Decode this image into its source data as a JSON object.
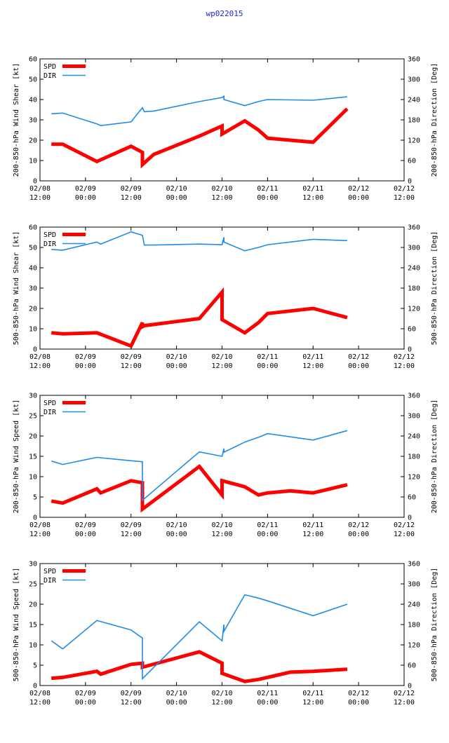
{
  "title": "wp022015",
  "colors": {
    "spd": "#ff0000",
    "dir": "#1e8be8",
    "axis": "#000000"
  },
  "x_ticks": [
    {
      "line1": "02/08",
      "line2": "12:00"
    },
    {
      "line1": "02/09",
      "line2": "00:00"
    },
    {
      "line1": "02/09",
      "line2": "12:00"
    },
    {
      "line1": "02/10",
      "line2": "00:00"
    },
    {
      "line1": "02/10",
      "line2": "12:00"
    },
    {
      "line1": "02/11",
      "line2": "00:00"
    },
    {
      "line1": "02/11",
      "line2": "12:00"
    },
    {
      "line1": "02/12",
      "line2": "00:00"
    },
    {
      "line1": "02/12",
      "line2": "12:00"
    }
  ],
  "chart_data": [
    {
      "type": "line",
      "ylabel": "200-850-hPa Wind Shear [kt]",
      "y2label": "200-850-hPa Direction [Deg]",
      "ylim": [
        0,
        60
      ],
      "y_ticks": [
        0,
        10,
        20,
        30,
        40,
        50,
        60
      ],
      "y2lim": [
        0,
        360
      ],
      "y2_ticks": [
        0,
        60,
        120,
        180,
        240,
        300,
        360
      ],
      "xlim": [
        0,
        96
      ],
      "legend": [
        "SPD",
        "DIR"
      ],
      "series": [
        {
          "name": "SPD",
          "axis": "left",
          "x": [
            3,
            6,
            15,
            24,
            27,
            27,
            30,
            42,
            48,
            48,
            54,
            57.6,
            60,
            72,
            81
          ],
          "y": [
            18,
            18,
            9.5,
            17,
            14,
            8,
            13,
            22,
            27,
            23,
            29.5,
            25,
            21,
            19,
            35.5
          ]
        },
        {
          "name": "DIR",
          "axis": "right",
          "x": [
            3,
            6,
            15,
            16,
            24,
            27,
            27.5,
            30,
            42,
            48,
            48.5,
            48.5,
            54,
            57.6,
            60,
            72,
            81
          ],
          "y": [
            198,
            200,
            168,
            163,
            174,
            216,
            204,
            206,
            234,
            246,
            250,
            240,
            222,
            234,
            240,
            238,
            248
          ]
        }
      ]
    },
    {
      "type": "line",
      "ylabel": "500-850-hPa Wind Shear [kt]",
      "y2label": "500-850-hPa Direction [Deg]",
      "ylim": [
        0,
        60
      ],
      "y_ticks": [
        0,
        10,
        20,
        30,
        40,
        50,
        60
      ],
      "y2lim": [
        0,
        360
      ],
      "y2_ticks": [
        0,
        60,
        120,
        180,
        240,
        300,
        360
      ],
      "xlim": [
        0,
        96
      ],
      "legend": [
        "SPD",
        "DIR"
      ],
      "series": [
        {
          "name": "SPD",
          "axis": "left",
          "x": [
            3,
            6,
            15,
            24,
            27,
            27,
            27.5,
            42,
            48,
            48,
            54,
            57.6,
            60,
            72,
            81
          ],
          "y": [
            8,
            7.5,
            8,
            1.5,
            13,
            11,
            11.5,
            15,
            28,
            14.5,
            8,
            13,
            17.5,
            20,
            15.5
          ]
        },
        {
          "name": "DIR",
          "axis": "right",
          "x": [
            3,
            6,
            15,
            16,
            24,
            27,
            27.5,
            30,
            42,
            48,
            48.5,
            48.5,
            54,
            57.6,
            60,
            72,
            81
          ],
          "y": [
            294,
            292,
            316,
            310,
            346,
            336,
            307,
            307,
            310,
            308,
            330,
            316,
            290,
            300,
            308,
            324,
            320
          ]
        }
      ]
    },
    {
      "type": "line",
      "ylabel": "200-850-hPa Wind Speed [kt]",
      "y2label": "200-850-hPa Direction [Deg]",
      "ylim": [
        0,
        30
      ],
      "y_ticks": [
        0,
        5,
        10,
        15,
        20,
        25,
        30
      ],
      "y2lim": [
        0,
        360
      ],
      "y2_ticks": [
        0,
        60,
        120,
        180,
        240,
        300,
        360
      ],
      "xlim": [
        0,
        96
      ],
      "legend": [
        "SPD",
        "DIR"
      ],
      "series": [
        {
          "name": "SPD",
          "axis": "left",
          "x": [
            3,
            6,
            15,
            16,
            24,
            27,
            27,
            42,
            48,
            48,
            54,
            57.6,
            60,
            66,
            72,
            81
          ],
          "y": [
            4,
            3.5,
            7,
            6,
            9,
            8.5,
            2,
            12.5,
            5.5,
            9,
            7.5,
            5.5,
            6,
            6.5,
            6,
            8
          ]
        },
        {
          "name": "DIR",
          "axis": "right",
          "x": [
            3,
            6,
            15,
            24,
            27,
            27,
            42,
            48,
            48.5,
            48.5,
            54,
            57.6,
            60,
            72,
            81
          ],
          "y": [
            166,
            156,
            177,
            167,
            164,
            50,
            193,
            180,
            203,
            192,
            222,
            236,
            247,
            228,
            256
          ]
        }
      ]
    },
    {
      "type": "line",
      "ylabel": "500-850-hPa Wind Speed [kt]",
      "y2label": "500-850-hPa Direction [Deg]",
      "ylim": [
        0,
        30
      ],
      "y_ticks": [
        0,
        5,
        10,
        15,
        20,
        25,
        30
      ],
      "y2lim": [
        0,
        360
      ],
      "y2_ticks": [
        0,
        60,
        120,
        180,
        240,
        300,
        360
      ],
      "xlim": [
        0,
        96
      ],
      "legend": [
        "SPD",
        "DIR"
      ],
      "series": [
        {
          "name": "SPD",
          "axis": "left",
          "x": [
            3,
            6,
            15,
            16,
            24,
            27,
            27,
            42,
            48,
            48,
            54,
            57.6,
            60,
            66,
            72,
            81
          ],
          "y": [
            1.8,
            2,
            3.5,
            2.8,
            5.2,
            5.5,
            4.5,
            8.3,
            5.5,
            3,
            1,
            1.5,
            2,
            3.3,
            3.5,
            4
          ]
        },
        {
          "name": "DIR",
          "axis": "right",
          "x": [
            3,
            6,
            15,
            24,
            27,
            27,
            42,
            48,
            48.5,
            48.5,
            54,
            57.6,
            60,
            72,
            81
          ],
          "y": [
            132,
            108,
            192,
            164,
            140,
            20,
            188,
            132,
            180,
            160,
            268,
            258,
            250,
            206,
            240
          ]
        }
      ]
    }
  ]
}
